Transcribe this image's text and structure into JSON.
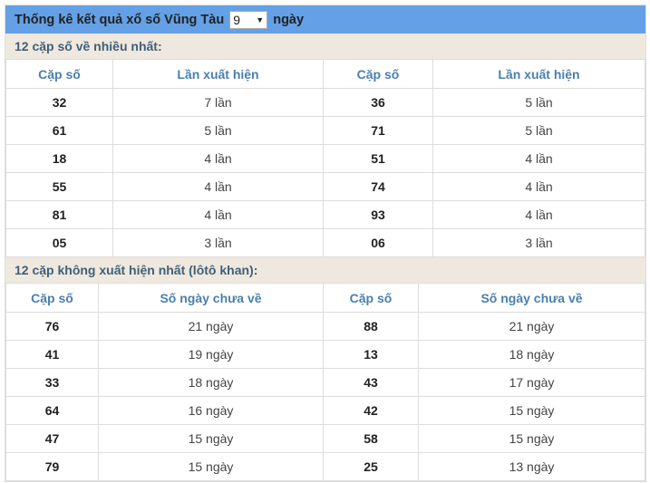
{
  "header": {
    "title": "Thống kê kết quả xổ số Vũng Tàu",
    "days_value": "9",
    "days_suffix": "ngày"
  },
  "most": {
    "title": "12 cặp số về nhiều nhất:",
    "headers": [
      "Cặp số",
      "Lần xuất hiện",
      "Cặp số",
      "Lần xuất hiện"
    ],
    "rows": [
      [
        "32",
        "7 lần",
        "36",
        "5 lần"
      ],
      [
        "61",
        "5 lần",
        "71",
        "5 lần"
      ],
      [
        "18",
        "4 lần",
        "51",
        "4 lần"
      ],
      [
        "55",
        "4 lần",
        "74",
        "4 lần"
      ],
      [
        "81",
        "4 lần",
        "93",
        "4 lần"
      ],
      [
        "05",
        "3 lần",
        "06",
        "3 lần"
      ]
    ]
  },
  "absent": {
    "title": "12 cặp không xuất hiện nhất (lôtô khan):",
    "headers": [
      "Cặp số",
      "Số ngày chưa về",
      "Cặp số",
      "Số ngày chưa về"
    ],
    "rows": [
      [
        "76",
        "21 ngày",
        "88",
        "21 ngày"
      ],
      [
        "41",
        "19 ngày",
        "13",
        "18 ngày"
      ],
      [
        "33",
        "18 ngày",
        "43",
        "17 ngày"
      ],
      [
        "64",
        "16 ngày",
        "42",
        "15 ngày"
      ],
      [
        "47",
        "15 ngày",
        "58",
        "15 ngày"
      ],
      [
        "79",
        "15 ngày",
        "25",
        "13 ngày"
      ]
    ]
  }
}
